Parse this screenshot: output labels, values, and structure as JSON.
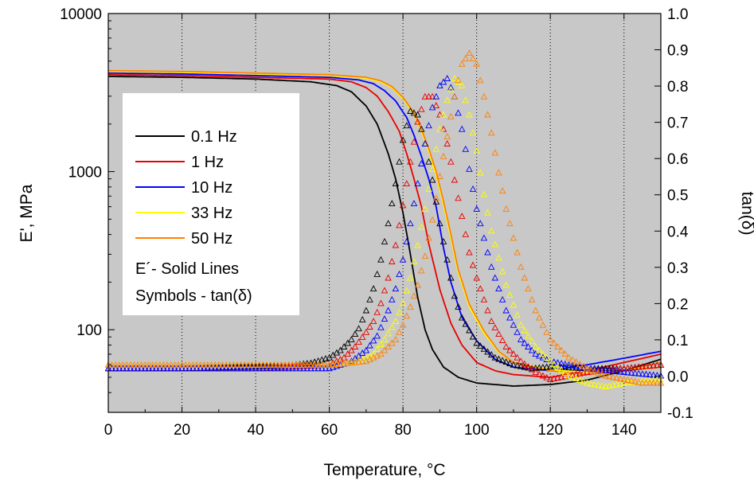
{
  "chart_data": {
    "type": "line",
    "title": "",
    "xlabel": "Temperature, °C",
    "ylabel": "E', MPa",
    "y2label": "tan(δ)",
    "xlim": [
      0,
      150
    ],
    "ylim": [
      30,
      10000
    ],
    "y_scale": "log",
    "y2lim": [
      -0.1,
      1.0
    ],
    "plot_background": "#c8c8c8",
    "grid": "vertical dotted",
    "x_ticks": [
      "0",
      "20",
      "40",
      "60",
      "80",
      "100",
      "120",
      "140"
    ],
    "y_ticks": [
      "100",
      "1000",
      "10000"
    ],
    "y2_ticks": [
      "-0.1",
      "0.0",
      "0.1",
      "0.2",
      "0.3",
      "0.4",
      "0.5",
      "0.6",
      "0.7",
      "0.8",
      "0.9",
      "1.0"
    ],
    "legend": {
      "position": "left",
      "entries": [
        "0.1 Hz",
        "1 Hz",
        "10 Hz",
        "33 Hz",
        "50 Hz"
      ],
      "notes": [
        "E´- Solid Lines",
        "Symbols - tan(δ)"
      ]
    },
    "series": [
      {
        "name": "0.1 Hz",
        "color": "#000000",
        "E_prime": {
          "x": [
            0,
            20,
            40,
            55,
            62,
            66,
            70,
            73,
            76,
            78,
            80,
            82,
            84,
            86,
            88,
            91,
            95,
            100,
            110,
            120,
            130,
            140,
            150
          ],
          "y": [
            4000,
            3950,
            3850,
            3700,
            3500,
            3200,
            2600,
            2000,
            1300,
            900,
            550,
            300,
            160,
            100,
            75,
            58,
            50,
            46,
            44,
            45,
            48,
            55,
            65
          ]
        },
        "tan_delta": {
          "x": [
            0,
            20,
            40,
            50,
            55,
            60,
            63,
            66,
            68,
            70,
            72,
            74,
            76,
            78,
            80,
            82,
            84,
            86,
            88,
            90,
            92,
            94,
            96,
            100,
            105,
            110,
            115,
            120,
            130,
            140,
            150
          ],
          "y": [
            0.02,
            0.02,
            0.025,
            0.03,
            0.035,
            0.05,
            0.07,
            0.1,
            0.13,
            0.18,
            0.24,
            0.32,
            0.42,
            0.53,
            0.65,
            0.73,
            0.72,
            0.64,
            0.54,
            0.42,
            0.32,
            0.22,
            0.16,
            0.09,
            0.05,
            0.03,
            0.02,
            0.025,
            0.02,
            0.02,
            0.03
          ]
        }
      },
      {
        "name": "1 Hz",
        "color": "#e80000",
        "E_prime": {
          "x": [
            0,
            20,
            40,
            60,
            66,
            70,
            73,
            76,
            79,
            81,
            83,
            85,
            87,
            90,
            93,
            96,
            100,
            105,
            110,
            120,
            130,
            140,
            150
          ],
          "y": [
            4100,
            4050,
            3950,
            3850,
            3700,
            3400,
            3000,
            2400,
            1800,
            1300,
            900,
            600,
            350,
            180,
            110,
            80,
            62,
            55,
            52,
            50,
            55,
            62,
            70
          ]
        },
        "tan_delta": {
          "x": [
            0,
            20,
            40,
            60,
            64,
            67,
            70,
            72,
            74,
            76,
            78,
            80,
            82,
            84,
            86,
            88,
            90,
            92,
            94,
            96,
            98,
            100,
            104,
            108,
            112,
            116,
            120,
            125,
            130,
            140,
            150
          ],
          "y": [
            0.02,
            0.02,
            0.02,
            0.03,
            0.05,
            0.08,
            0.12,
            0.15,
            0.2,
            0.27,
            0.36,
            0.47,
            0.59,
            0.7,
            0.77,
            0.77,
            0.72,
            0.64,
            0.54,
            0.44,
            0.34,
            0.27,
            0.15,
            0.08,
            0.04,
            0.01,
            -0.01,
            0.0,
            0.01,
            0.02,
            0.03
          ]
        }
      },
      {
        "name": "10 Hz",
        "color": "#0000ff",
        "E_prime": {
          "x": [
            0,
            20,
            40,
            60,
            68,
            72,
            75,
            78,
            81,
            83,
            85,
            87,
            89,
            91,
            93,
            96,
            100,
            105,
            110,
            120,
            130,
            140,
            150
          ],
          "y": [
            4200,
            4150,
            4050,
            3950,
            3800,
            3600,
            3250,
            2800,
            2200,
            1700,
            1250,
            900,
            600,
            330,
            200,
            120,
            85,
            65,
            58,
            55,
            60,
            66,
            73
          ]
        },
        "tan_delta": {
          "x": [
            0,
            20,
            40,
            60,
            66,
            70,
            73,
            76,
            78,
            80,
            82,
            84,
            86,
            88,
            90,
            92,
            94,
            96,
            98,
            100,
            104,
            108,
            112,
            116,
            120,
            125,
            130,
            140,
            150
          ],
          "y": [
            0.02,
            0.02,
            0.02,
            0.02,
            0.04,
            0.07,
            0.11,
            0.18,
            0.24,
            0.32,
            0.42,
            0.53,
            0.64,
            0.74,
            0.8,
            0.82,
            0.77,
            0.68,
            0.57,
            0.46,
            0.3,
            0.18,
            0.1,
            0.06,
            0.04,
            0.03,
            0.02,
            0.01,
            0.0
          ]
        }
      },
      {
        "name": "33 Hz",
        "color": "#ffff00",
        "E_prime": {
          "x": [
            0,
            20,
            40,
            60,
            70,
            74,
            77,
            80,
            83,
            85,
            87,
            89,
            91,
            93,
            95,
            98,
            102,
            106,
            110,
            120,
            130,
            140,
            150
          ],
          "y": [
            4300,
            4250,
            4150,
            4050,
            3900,
            3700,
            3400,
            2900,
            2300,
            1800,
            1350,
            950,
            620,
            380,
            230,
            140,
            95,
            72,
            62,
            56,
            54,
            55,
            58
          ]
        },
        "tan_delta": {
          "x": [
            0,
            20,
            40,
            60,
            68,
            72,
            75,
            78,
            80,
            82,
            84,
            86,
            88,
            90,
            92,
            94,
            96,
            98,
            100,
            102,
            104,
            108,
            112,
            116,
            120,
            125,
            130,
            135,
            140,
            150
          ],
          "y": [
            0.03,
            0.03,
            0.03,
            0.03,
            0.04,
            0.06,
            0.1,
            0.15,
            0.2,
            0.27,
            0.36,
            0.46,
            0.57,
            0.68,
            0.76,
            0.82,
            0.8,
            0.72,
            0.62,
            0.5,
            0.4,
            0.25,
            0.14,
            0.08,
            0.04,
            0.0,
            -0.02,
            -0.03,
            -0.02,
            -0.01
          ]
        }
      },
      {
        "name": "50 Hz",
        "color": "#ff8000",
        "E_prime": {
          "x": [
            0,
            20,
            40,
            60,
            70,
            74,
            77,
            80,
            83,
            85,
            87,
            89,
            91,
            93,
            95,
            98,
            102,
            106,
            110,
            120,
            130,
            140,
            150
          ],
          "y": [
            4350,
            4300,
            4200,
            4100,
            3950,
            3750,
            3450,
            2950,
            2350,
            1850,
            1400,
            1000,
            650,
            400,
            240,
            145,
            98,
            73,
            62,
            55,
            52,
            55,
            62
          ]
        },
        "tan_delta": {
          "x": [
            0,
            20,
            40,
            60,
            70,
            74,
            78,
            80,
            82,
            84,
            86,
            88,
            90,
            92,
            94,
            96,
            98,
            100,
            102,
            104,
            106,
            108,
            112,
            116,
            120,
            125,
            130,
            135,
            140,
            145,
            150
          ],
          "y": [
            0.03,
            0.03,
            0.03,
            0.03,
            0.04,
            0.06,
            0.1,
            0.14,
            0.19,
            0.25,
            0.33,
            0.43,
            0.55,
            0.66,
            0.77,
            0.86,
            0.89,
            0.86,
            0.77,
            0.67,
            0.56,
            0.46,
            0.3,
            0.18,
            0.1,
            0.05,
            0.02,
            0.0,
            -0.01,
            -0.02,
            -0.02
          ]
        }
      }
    ]
  }
}
